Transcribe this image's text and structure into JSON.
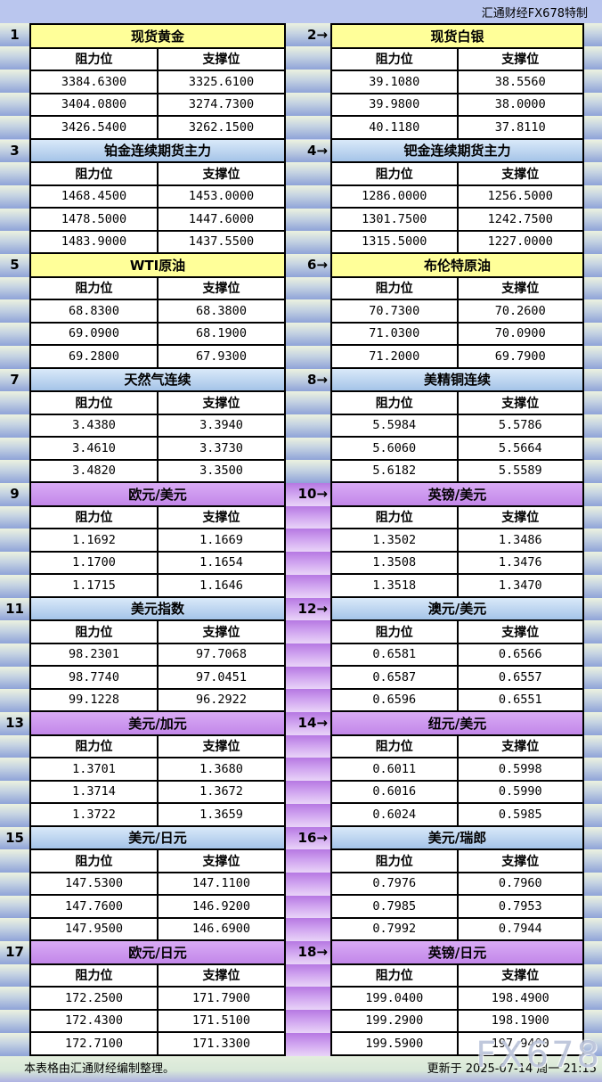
{
  "header": {
    "credit": "汇通财经FX678特制"
  },
  "labels": {
    "resistance": "阻力位",
    "support": "支撑位"
  },
  "footer": {
    "note": "本表格由汇通财经编制整理。",
    "updated": "更新于 2025-07-14 周一 21:15",
    "watermark": "FX678"
  },
  "colors": {
    "yellow_header": "#ffff99",
    "blue_header_top": "#d9e9f9",
    "blue_header_bottom": "#a5c4e8",
    "purple_header_top": "#d9abf5",
    "purple_header_bottom": "#c287e9",
    "band_blue_top": "#ecf2df",
    "band_blue_bottom": "#8fa3d8",
    "band_purple_top": "#b678e2",
    "band_purple_bottom": "#e9d4f8",
    "top_strip_bg": "#bac6ee",
    "border": "#000000"
  },
  "chart_data": {
    "type": "table",
    "columns": [
      "阻力位",
      "支撑位"
    ],
    "tables": [
      {
        "num_label": "1",
        "title": "现货黄金",
        "theme": "yellow",
        "rows": [
          [
            "3384.6300",
            "3325.6100"
          ],
          [
            "3404.0800",
            "3274.7300"
          ],
          [
            "3426.5400",
            "3262.1500"
          ]
        ]
      },
      {
        "num_label": "2→",
        "title": "现货白银",
        "theme": "yellow",
        "rows": [
          [
            "39.1080",
            "38.5560"
          ],
          [
            "39.9800",
            "38.0000"
          ],
          [
            "40.1180",
            "37.8110"
          ]
        ]
      },
      {
        "num_label": "3",
        "title": "铂金连续期货主力",
        "theme": "blue",
        "rows": [
          [
            "1468.4500",
            "1453.0000"
          ],
          [
            "1478.5000",
            "1447.6000"
          ],
          [
            "1483.9000",
            "1437.5500"
          ]
        ]
      },
      {
        "num_label": "4→",
        "title": "钯金连续期货主力",
        "theme": "blue",
        "rows": [
          [
            "1286.0000",
            "1256.5000"
          ],
          [
            "1301.7500",
            "1242.7500"
          ],
          [
            "1315.5000",
            "1227.0000"
          ]
        ]
      },
      {
        "num_label": "5",
        "title": "WTI原油",
        "theme": "yellow",
        "rows": [
          [
            "68.8300",
            "68.3800"
          ],
          [
            "69.0900",
            "68.1900"
          ],
          [
            "69.2800",
            "67.9300"
          ]
        ]
      },
      {
        "num_label": "6→",
        "title": "布伦特原油",
        "theme": "yellow",
        "rows": [
          [
            "70.7300",
            "70.2600"
          ],
          [
            "71.0300",
            "70.0900"
          ],
          [
            "71.2000",
            "69.7900"
          ]
        ]
      },
      {
        "num_label": "7",
        "title": "天然气连续",
        "theme": "blue",
        "rows": [
          [
            "3.4380",
            "3.3940"
          ],
          [
            "3.4610",
            "3.3730"
          ],
          [
            "3.4820",
            "3.3500"
          ]
        ]
      },
      {
        "num_label": "8→",
        "title": "美精铜连续",
        "theme": "blue",
        "rows": [
          [
            "5.5984",
            "5.5786"
          ],
          [
            "5.6060",
            "5.5664"
          ],
          [
            "5.6182",
            "5.5589"
          ]
        ]
      },
      {
        "num_label": "9",
        "title": "欧元/美元",
        "theme": "purple",
        "rows": [
          [
            "1.1692",
            "1.1669"
          ],
          [
            "1.1700",
            "1.1654"
          ],
          [
            "1.1715",
            "1.1646"
          ]
        ]
      },
      {
        "num_label": "10→",
        "title": "英镑/美元",
        "theme": "purple",
        "rows": [
          [
            "1.3502",
            "1.3486"
          ],
          [
            "1.3508",
            "1.3476"
          ],
          [
            "1.3518",
            "1.3470"
          ]
        ]
      },
      {
        "num_label": "11",
        "title": "美元指数",
        "theme": "blue",
        "rows": [
          [
            "98.2301",
            "97.7068"
          ],
          [
            "98.7740",
            "97.0451"
          ],
          [
            "99.1228",
            "96.2922"
          ]
        ]
      },
      {
        "num_label": "12→",
        "title": "澳元/美元",
        "theme": "blue",
        "rows": [
          [
            "0.6581",
            "0.6566"
          ],
          [
            "0.6587",
            "0.6557"
          ],
          [
            "0.6596",
            "0.6551"
          ]
        ]
      },
      {
        "num_label": "13",
        "title": "美元/加元",
        "theme": "purple",
        "rows": [
          [
            "1.3701",
            "1.3680"
          ],
          [
            "1.3714",
            "1.3672"
          ],
          [
            "1.3722",
            "1.3659"
          ]
        ]
      },
      {
        "num_label": "14→",
        "title": "纽元/美元",
        "theme": "purple",
        "rows": [
          [
            "0.6011",
            "0.5998"
          ],
          [
            "0.6016",
            "0.5990"
          ],
          [
            "0.6024",
            "0.5985"
          ]
        ]
      },
      {
        "num_label": "15",
        "title": "美元/日元",
        "theme": "blue",
        "rows": [
          [
            "147.5300",
            "147.1100"
          ],
          [
            "147.7600",
            "146.9200"
          ],
          [
            "147.9500",
            "146.6900"
          ]
        ]
      },
      {
        "num_label": "16→",
        "title": "美元/瑞郎",
        "theme": "blue",
        "rows": [
          [
            "0.7976",
            "0.7960"
          ],
          [
            "0.7985",
            "0.7953"
          ],
          [
            "0.7992",
            "0.7944"
          ]
        ]
      },
      {
        "num_label": "17",
        "title": "欧元/日元",
        "theme": "purple",
        "rows": [
          [
            "172.2500",
            "171.7900"
          ],
          [
            "172.4300",
            "171.5100"
          ],
          [
            "172.7100",
            "171.3300"
          ]
        ]
      },
      {
        "num_label": "18→",
        "title": "英镑/日元",
        "theme": "purple",
        "rows": [
          [
            "199.0400",
            "198.4900"
          ],
          [
            "199.2900",
            "198.1900"
          ],
          [
            "199.5900",
            "197.9400"
          ]
        ]
      }
    ]
  }
}
